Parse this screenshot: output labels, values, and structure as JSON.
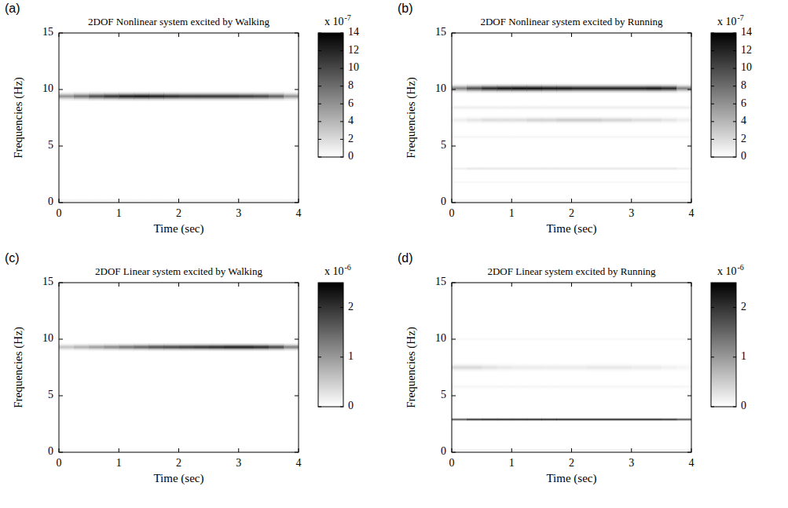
{
  "chart_data": [
    {
      "type": "heatmap",
      "panel_label": "(a)",
      "title": "2DOF Nonlinear system excited by Walking",
      "x_label": "Time (sec)",
      "y_label": "Frequencies (Hz)",
      "xlim": [
        0,
        4
      ],
      "xticks": [
        0,
        1,
        2,
        3,
        4
      ],
      "ylim": [
        0,
        15
      ],
      "yticks": [
        0,
        5,
        10,
        15
      ],
      "x": [
        0.125,
        0.375,
        0.625,
        0.875,
        1.125,
        1.375,
        1.625,
        1.875,
        2.125,
        2.375,
        2.625,
        2.875,
        3.125,
        3.375,
        3.625,
        3.875
      ],
      "bands": [
        {
          "frequency": 9.4,
          "bandwidth": 0.9,
          "values": [
            6e-07,
            8e-07,
            1e-06,
            1.15e-06,
            1.25e-06,
            1.3e-06,
            1.25e-06,
            1.2e-06,
            1.15e-06,
            1.15e-06,
            1.15e-06,
            1.15e-06,
            1.1e-06,
            1.05e-06,
            9e-07,
            6e-07
          ]
        },
        {
          "frequency": 0.2,
          "bandwidth": 0.3,
          "values": [
            1e-07,
            1e-07,
            1e-07,
            1e-07,
            1e-07,
            1e-07,
            1e-07,
            1e-07,
            1e-07,
            1e-07,
            1e-07,
            1e-07,
            1e-07,
            1e-07,
            1e-07,
            1e-07
          ]
        }
      ],
      "colorbar": {
        "range": [
          0,
          1.4e-06
        ],
        "ticks": [
          0,
          {
            "value": 2e-07,
            "label": "2"
          },
          {
            "value": 4e-07,
            "label": "4"
          },
          {
            "value": 6e-07,
            "label": "6"
          },
          {
            "value": 8e-07,
            "label": "8"
          },
          {
            "value": 1e-06,
            "label": "10"
          },
          {
            "value": 1.2e-06,
            "label": "12"
          },
          {
            "value": 1.4e-06,
            "label": "14"
          }
        ],
        "scale_label": "x 10",
        "scale_exponent": "-7"
      }
    },
    {
      "type": "heatmap",
      "panel_label": "(b)",
      "title": "2DOF Nonlinear system excited by Running",
      "x_label": "Time (sec)",
      "y_label": "Frequencies (Hz)",
      "xlim": [
        0,
        4
      ],
      "xticks": [
        0,
        1,
        2,
        3,
        4
      ],
      "ylim": [
        0,
        15
      ],
      "yticks": [
        0,
        5,
        10,
        15
      ],
      "x": [
        0.125,
        0.375,
        0.625,
        0.875,
        1.125,
        1.375,
        1.625,
        1.875,
        2.125,
        2.375,
        2.625,
        2.875,
        3.125,
        3.375,
        3.625,
        3.875
      ],
      "bands": [
        {
          "frequency": 10.1,
          "bandwidth": 0.9,
          "values": [
            7e-07,
            1e-06,
            1.2e-06,
            1.3e-06,
            1.35e-06,
            1.35e-06,
            1.3e-06,
            1.3e-06,
            1.25e-06,
            1.25e-06,
            1.25e-06,
            1.25e-06,
            1.25e-06,
            1.3e-06,
            1.2e-06,
            7e-07
          ]
        },
        {
          "frequency": 8.4,
          "bandwidth": 0.6,
          "values": [
            1e-07,
            1e-07,
            1e-07,
            1e-07,
            1e-07,
            1e-07,
            1e-07,
            1e-07,
            1e-07,
            1e-07,
            1e-07,
            1e-07,
            1e-07,
            1e-07,
            1e-07,
            1e-07
          ]
        },
        {
          "frequency": 7.3,
          "bandwidth": 0.8,
          "values": [
            1e-07,
            1.5e-07,
            2e-07,
            2e-07,
            2e-07,
            2.5e-07,
            2.5e-07,
            3e-07,
            3e-07,
            3e-07,
            2.5e-07,
            2.5e-07,
            2e-07,
            2e-07,
            1.5e-07,
            1e-07
          ]
        },
        {
          "frequency": 5.8,
          "bandwidth": 0.5,
          "values": [
            5e-08,
            5e-08,
            5e-08,
            5e-08,
            5e-08,
            5e-08,
            5e-08,
            5e-08,
            5e-08,
            5e-08,
            5e-08,
            5e-08,
            5e-08,
            5e-08,
            5e-08,
            5e-08
          ]
        },
        {
          "frequency": 3.0,
          "bandwidth": 0.4,
          "values": [
            1e-07,
            1.5e-07,
            1.5e-07,
            1.5e-07,
            1.5e-07,
            1.5e-07,
            1.5e-07,
            1.5e-07,
            1.5e-07,
            1.5e-07,
            1.5e-07,
            1.5e-07,
            1.5e-07,
            1.5e-07,
            1.5e-07,
            1e-07
          ]
        },
        {
          "frequency": 1.8,
          "bandwidth": 0.3,
          "values": [
            6e-08,
            6e-08,
            6e-08,
            6e-08,
            6e-08,
            6e-08,
            6e-08,
            6e-08,
            6e-08,
            6e-08,
            6e-08,
            6e-08,
            6e-08,
            6e-08,
            6e-08,
            6e-08
          ]
        },
        {
          "frequency": 0.2,
          "bandwidth": 0.3,
          "values": [
            8e-08,
            8e-08,
            8e-08,
            8e-08,
            8e-08,
            8e-08,
            8e-08,
            8e-08,
            8e-08,
            8e-08,
            8e-08,
            8e-08,
            8e-08,
            8e-08,
            8e-08,
            8e-08
          ]
        }
      ],
      "colorbar": {
        "range": [
          0,
          1.4e-06
        ],
        "ticks": [
          0,
          {
            "value": 2e-07,
            "label": "2"
          },
          {
            "value": 4e-07,
            "label": "4"
          },
          {
            "value": 6e-07,
            "label": "6"
          },
          {
            "value": 8e-07,
            "label": "8"
          },
          {
            "value": 1e-06,
            "label": "10"
          },
          {
            "value": 1.2e-06,
            "label": "12"
          },
          {
            "value": 1.4e-06,
            "label": "14"
          }
        ],
        "scale_label": "x 10",
        "scale_exponent": "-7"
      }
    },
    {
      "type": "heatmap",
      "panel_label": "(c)",
      "title": "2DOF Linear system excited by Walking",
      "x_label": "Time (sec)",
      "y_label": "Frequencies (Hz)",
      "xlim": [
        0,
        4
      ],
      "xticks": [
        0,
        1,
        2,
        3,
        4
      ],
      "ylim": [
        0,
        15
      ],
      "yticks": [
        0,
        5,
        10,
        15
      ],
      "x": [
        0.125,
        0.375,
        0.625,
        0.875,
        1.125,
        1.375,
        1.625,
        1.875,
        2.125,
        2.375,
        2.625,
        2.875,
        3.125,
        3.375,
        3.625,
        3.875
      ],
      "bands": [
        {
          "frequency": 9.3,
          "bandwidth": 0.8,
          "values": [
            6e-07,
            8e-07,
            1e-06,
            1.2e-06,
            1.4e-06,
            1.6e-06,
            1.8e-06,
            1.9e-06,
            2e-06,
            2.1e-06,
            2.2e-06,
            2.3e-06,
            2.3e-06,
            2.2e-06,
            1.9e-06,
            1.3e-06
          ]
        }
      ],
      "colorbar": {
        "range": [
          0,
          2.5e-06
        ],
        "ticks": [
          0,
          {
            "value": 1e-06,
            "label": "1"
          },
          {
            "value": 2e-06,
            "label": "2"
          }
        ],
        "scale_label": "x 10",
        "scale_exponent": "-6"
      }
    },
    {
      "type": "heatmap",
      "panel_label": "(d)",
      "title": "2DOF Linear system excited by Running",
      "x_label": "Time (sec)",
      "y_label": "Frequencies (Hz)",
      "xlim": [
        0,
        4
      ],
      "xticks": [
        0,
        1,
        2,
        3,
        4
      ],
      "ylim": [
        0,
        15
      ],
      "yticks": [
        0,
        5,
        10,
        15
      ],
      "x": [
        0.125,
        0.375,
        0.625,
        0.875,
        1.125,
        1.375,
        1.625,
        1.875,
        2.125,
        2.375,
        2.625,
        2.875,
        3.125,
        3.375,
        3.625,
        3.875
      ],
      "bands": [
        {
          "frequency": 2.9,
          "bandwidth": 0.35,
          "values": [
            1.8e-06,
            2.2e-06,
            2.3e-06,
            2.3e-06,
            2.3e-06,
            2.3e-06,
            2.3e-06,
            2.3e-06,
            2.3e-06,
            2.3e-06,
            2.3e-06,
            2.3e-06,
            2.3e-06,
            2.3e-06,
            2.2e-06,
            1.8e-06
          ]
        },
        {
          "frequency": 7.5,
          "bandwidth": 0.9,
          "values": [
            4e-07,
            4e-07,
            3e-07,
            2.5e-07,
            2e-07,
            2e-07,
            2e-07,
            2e-07,
            2e-07,
            2.5e-07,
            2.5e-07,
            2.5e-07,
            2e-07,
            2e-07,
            1.5e-07,
            1e-07
          ]
        },
        {
          "frequency": 10.0,
          "bandwidth": 0.4,
          "values": [
            8e-08,
            8e-08,
            8e-08,
            8e-08,
            8e-08,
            8e-08,
            8e-08,
            8e-08,
            8e-08,
            8e-08,
            8e-08,
            8e-08,
            8e-08,
            8e-08,
            8e-08,
            8e-08
          ]
        },
        {
          "frequency": 5.8,
          "bandwidth": 0.5,
          "values": [
            1e-07,
            1e-07,
            1e-07,
            1e-07,
            1e-07,
            1e-07,
            1e-07,
            1e-07,
            1e-07,
            1e-07,
            1e-07,
            1e-07,
            1e-07,
            1e-07,
            1e-07,
            1e-07
          ]
        },
        {
          "frequency": 0.2,
          "bandwidth": 0.3,
          "values": [
            1.5e-07,
            1.5e-07,
            1.5e-07,
            1.5e-07,
            1.5e-07,
            1.5e-07,
            1.5e-07,
            1.5e-07,
            1.5e-07,
            1.5e-07,
            1.5e-07,
            1.5e-07,
            1.5e-07,
            1.5e-07,
            1.5e-07,
            1.5e-07
          ]
        }
      ],
      "colorbar": {
        "range": [
          0,
          2.5e-06
        ],
        "ticks": [
          0,
          {
            "value": 1e-06,
            "label": "1"
          },
          {
            "value": 2e-06,
            "label": "2"
          }
        ],
        "scale_label": "x 10",
        "scale_exponent": "-6"
      }
    }
  ]
}
